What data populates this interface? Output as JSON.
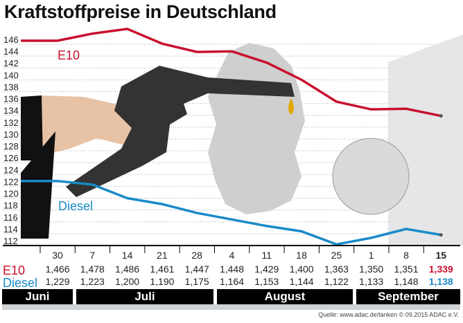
{
  "title": "Kraftstoffpreise in Deutschland",
  "chart_data": {
    "type": "line",
    "title": "Kraftstoffpreise in Deutschland",
    "ylim": [
      112,
      146
    ],
    "yticks": [
      146,
      144,
      142,
      140,
      138,
      136,
      134,
      132,
      130,
      128,
      126,
      124,
      122,
      120,
      118,
      116,
      114,
      112
    ],
    "grid": true,
    "categories": [
      "30",
      "7",
      "14",
      "21",
      "28",
      "4",
      "11",
      "18",
      "25",
      "1",
      "8",
      "15"
    ],
    "months": [
      "Juni",
      "Juli",
      "August",
      "September"
    ],
    "series": [
      {
        "name": "E10",
        "color": "#c8102e",
        "values": [
          146.6,
          147.8,
          148.6,
          146.1,
          144.7,
          144.8,
          142.9,
          140.0,
          136.3,
          135.0,
          135.1,
          133.9
        ],
        "labels": [
          "1,466",
          "1,478",
          "1,486",
          "1,461",
          "1,447",
          "1,448",
          "1,429",
          "1,400",
          "1,363",
          "1,350",
          "1,351",
          "1,339"
        ]
      },
      {
        "name": "Diesel",
        "color": "#1a8ac8",
        "values": [
          122.9,
          122.3,
          120.0,
          119.0,
          117.5,
          116.4,
          115.3,
          114.4,
          112.2,
          113.3,
          114.8,
          113.8
        ],
        "labels": [
          "1,229",
          "1,223",
          "1,200",
          "1,190",
          "1,175",
          "1,164",
          "1,153",
          "1,144",
          "1,122",
          "1,133",
          "1,148",
          "1,138"
        ]
      }
    ]
  },
  "source": "Quelle: www.adac.de/tanken  © 09.2015  ADAC e.V."
}
